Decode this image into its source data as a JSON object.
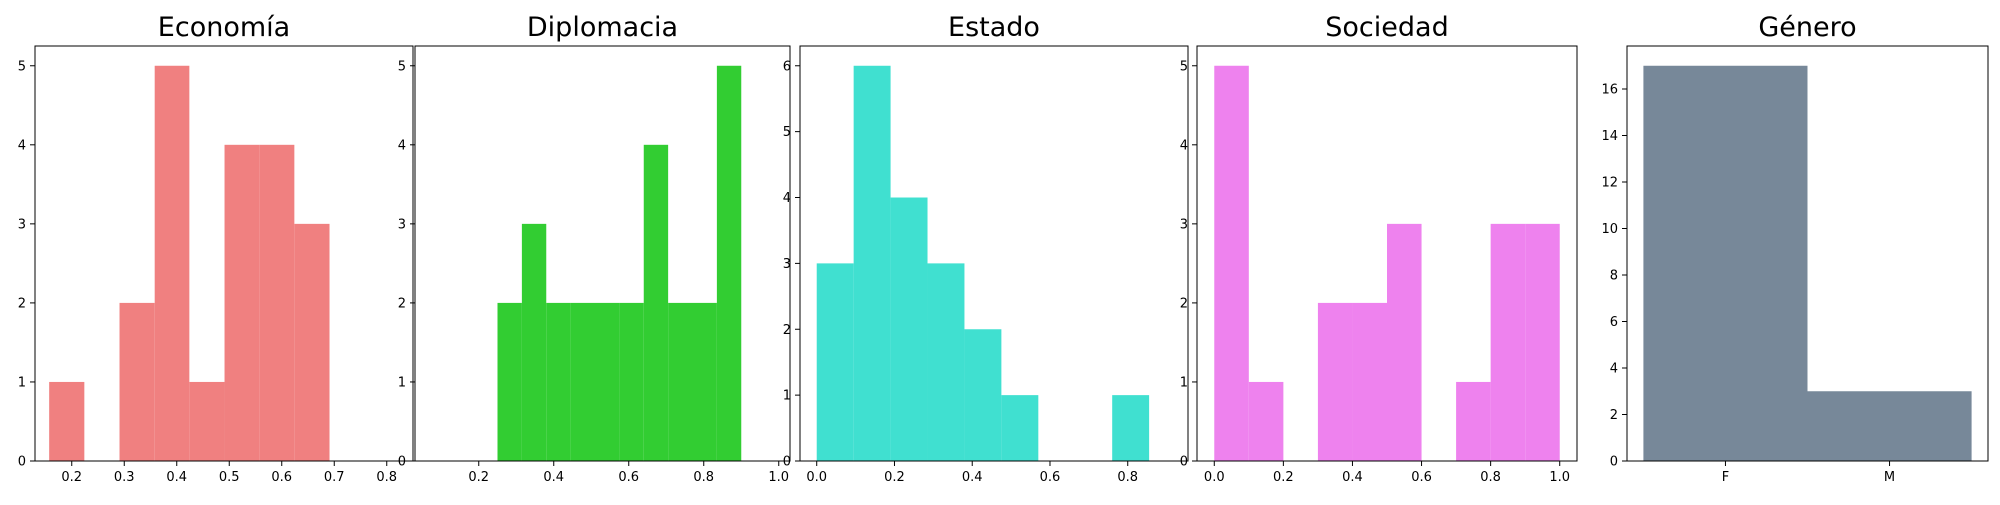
{
  "chart_data": [
    {
      "type": "bar",
      "title": "Economía",
      "color": "#f08080",
      "xlim": [
        0.13,
        0.85
      ],
      "ylim": [
        0,
        5.25
      ],
      "xticks": [
        0.2,
        0.3,
        0.4,
        0.5,
        0.6,
        0.7,
        0.8
      ],
      "xtick_labels": [
        "0.2",
        "0.3",
        "0.4",
        "0.5",
        "0.6",
        "0.7",
        "0.8"
      ],
      "yticks": [
        0,
        1,
        2,
        3,
        4,
        5
      ],
      "ytick_labels": [
        "0",
        "1",
        "2",
        "3",
        "4",
        "5"
      ],
      "bins": [
        {
          "x0": 0.157,
          "x1": 0.224,
          "count": 1
        },
        {
          "x0": 0.224,
          "x1": 0.291,
          "count": 0
        },
        {
          "x0": 0.291,
          "x1": 0.358,
          "count": 2
        },
        {
          "x0": 0.358,
          "x1": 0.424,
          "count": 5
        },
        {
          "x0": 0.424,
          "x1": 0.491,
          "count": 1
        },
        {
          "x0": 0.491,
          "x1": 0.558,
          "count": 4
        },
        {
          "x0": 0.558,
          "x1": 0.624,
          "count": 4
        },
        {
          "x0": 0.624,
          "x1": 0.691,
          "count": 3
        }
      ]
    },
    {
      "type": "bar",
      "title": "Diplomacia",
      "color": "#32cd32",
      "xlim": [
        0.03,
        1.03
      ],
      "ylim": [
        0,
        5.25
      ],
      "xticks": [
        0.2,
        0.4,
        0.6,
        0.8,
        1.0
      ],
      "xtick_labels": [
        "0.2",
        "0.4",
        "0.6",
        "0.8",
        "1.0"
      ],
      "yticks": [
        0,
        1,
        2,
        3,
        4,
        5
      ],
      "ytick_labels": [
        "0",
        "1",
        "2",
        "3",
        "4",
        "5"
      ],
      "bins": [
        {
          "x0": 0.25,
          "x1": 0.315,
          "count": 2
        },
        {
          "x0": 0.315,
          "x1": 0.38,
          "count": 3
        },
        {
          "x0": 0.38,
          "x1": 0.445,
          "count": 2
        },
        {
          "x0": 0.445,
          "x1": 0.51,
          "count": 2
        },
        {
          "x0": 0.51,
          "x1": 0.575,
          "count": 2
        },
        {
          "x0": 0.575,
          "x1": 0.64,
          "count": 2
        },
        {
          "x0": 0.64,
          "x1": 0.705,
          "count": 4
        },
        {
          "x0": 0.705,
          "x1": 0.77,
          "count": 2
        },
        {
          "x0": 0.77,
          "x1": 0.835,
          "count": 2
        },
        {
          "x0": 0.835,
          "x1": 0.9,
          "count": 5
        }
      ]
    },
    {
      "type": "bar",
      "title": "Estado",
      "color": "#40e0d0",
      "xlim": [
        -0.043,
        0.955
      ],
      "ylim": [
        0,
        6.3
      ],
      "xticks": [
        0.0,
        0.2,
        0.4,
        0.6,
        0.8
      ],
      "xtick_labels": [
        "0.0",
        "0.2",
        "0.4",
        "0.6",
        "0.8"
      ],
      "yticks": [
        0,
        1,
        2,
        3,
        4,
        5,
        6
      ],
      "ytick_labels": [
        "0",
        "1",
        "2",
        "3",
        "4",
        "5",
        "6"
      ],
      "bins": [
        {
          "x0": 0.0,
          "x1": 0.095,
          "count": 3
        },
        {
          "x0": 0.095,
          "x1": 0.19,
          "count": 6
        },
        {
          "x0": 0.19,
          "x1": 0.285,
          "count": 4
        },
        {
          "x0": 0.285,
          "x1": 0.38,
          "count": 3
        },
        {
          "x0": 0.38,
          "x1": 0.475,
          "count": 2
        },
        {
          "x0": 0.475,
          "x1": 0.57,
          "count": 1
        },
        {
          "x0": 0.57,
          "x1": 0.665,
          "count": 0
        },
        {
          "x0": 0.665,
          "x1": 0.76,
          "count": 0
        },
        {
          "x0": 0.76,
          "x1": 0.855,
          "count": 1
        }
      ]
    },
    {
      "type": "bar",
      "title": "Sociedad",
      "color": "#ee82ee",
      "xlim": [
        -0.05,
        1.05
      ],
      "ylim": [
        0,
        5.25
      ],
      "xticks": [
        0.0,
        0.2,
        0.4,
        0.6,
        0.8,
        1.0
      ],
      "xtick_labels": [
        "0.0",
        "0.2",
        "0.4",
        "0.6",
        "0.8",
        "1.0"
      ],
      "yticks": [
        0,
        1,
        2,
        3,
        4,
        5
      ],
      "ytick_labels": [
        "0",
        "1",
        "2",
        "3",
        "4",
        "5"
      ],
      "bins": [
        {
          "x0": 0.0,
          "x1": 0.1,
          "count": 5
        },
        {
          "x0": 0.1,
          "x1": 0.2,
          "count": 1
        },
        {
          "x0": 0.2,
          "x1": 0.3,
          "count": 0
        },
        {
          "x0": 0.3,
          "x1": 0.4,
          "count": 2
        },
        {
          "x0": 0.4,
          "x1": 0.5,
          "count": 2
        },
        {
          "x0": 0.5,
          "x1": 0.6,
          "count": 3
        },
        {
          "x0": 0.6,
          "x1": 0.7,
          "count": 0
        },
        {
          "x0": 0.7,
          "x1": 0.8,
          "count": 1
        },
        {
          "x0": 0.8,
          "x1": 0.9,
          "count": 3
        },
        {
          "x0": 0.9,
          "x1": 1.0,
          "count": 3
        }
      ]
    },
    {
      "type": "bar",
      "title": "Género",
      "color": "#778899",
      "xlim": [
        -0.05,
        1.05
      ],
      "ylim": [
        0,
        17.85
      ],
      "xticks": [
        0.25,
        0.75
      ],
      "xtick_labels": [
        "F",
        "M"
      ],
      "yticks": [
        0,
        2,
        4,
        6,
        8,
        10,
        12,
        14,
        16
      ],
      "ytick_labels": [
        "0",
        "2",
        "4",
        "6",
        "8",
        "10",
        "12",
        "14",
        "16"
      ],
      "bins": [
        {
          "x0": 0.0,
          "x1": 0.5,
          "count": 17
        },
        {
          "x0": 0.5,
          "x1": 1.0,
          "count": 3
        }
      ]
    }
  ]
}
